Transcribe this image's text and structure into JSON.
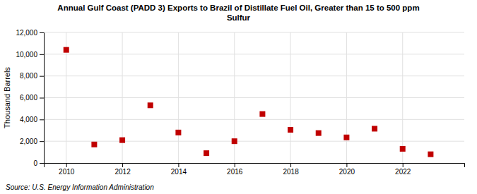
{
  "chart_data": {
    "type": "scatter",
    "title": "Annual Gulf Coast (PADD 3) Exports to Brazil of Distillate Fuel Oil, Greater than 15 to 500 ppm\nSulfur",
    "y_label": "Thousand Barrels",
    "source": "Source: U.S. Energy Information Administration",
    "x": [
      2010,
      2011,
      2012,
      2013,
      2014,
      2015,
      2016,
      2017,
      2018,
      2019,
      2020,
      2021,
      2022,
      2023
    ],
    "values": [
      10400,
      1700,
      2100,
      5300,
      2800,
      900,
      2000,
      4500,
      3050,
      2750,
      2350,
      3150,
      1300,
      800
    ],
    "color": "#c00000",
    "marker": "square",
    "xlim": [
      2009.2,
      2024.2
    ],
    "xticks": [
      2010,
      2012,
      2014,
      2016,
      2018,
      2020,
      2022
    ],
    "ylim": [
      0,
      12000
    ],
    "yticks": [
      0,
      {
        "value": 2000,
        "label": "2,000"
      },
      {
        "value": 4000,
        "label": "4,000"
      },
      {
        "value": 6000,
        "label": "6,000"
      },
      {
        "value": 8000,
        "label": "8,000"
      },
      {
        "value": 10000,
        "label": "10,000"
      },
      {
        "value": 12000,
        "label": "12,000"
      }
    ],
    "grid": true
  }
}
